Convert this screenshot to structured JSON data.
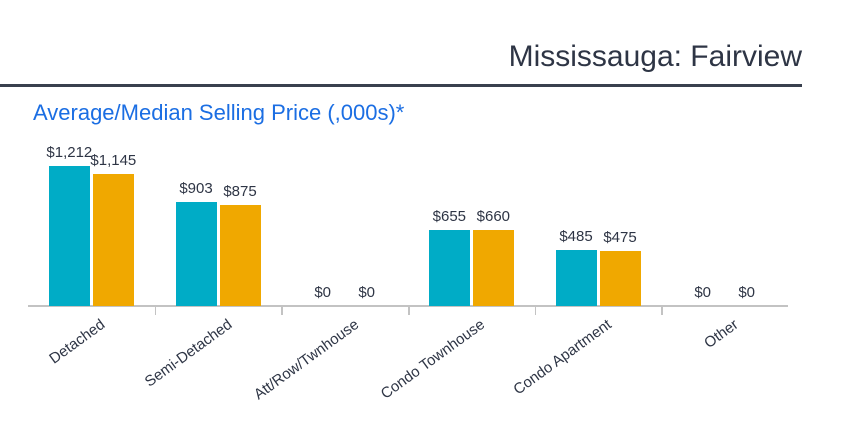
{
  "header": {
    "title": "Mississauga: Fairview"
  },
  "chart": {
    "title": "Average/Median Selling Price (,000s)*"
  },
  "chart_data": {
    "type": "bar",
    "title": "Average/Median Selling Price (,000s)*",
    "categories": [
      "Detached",
      "Semi-Detached",
      "Att/Row/Twnhouse",
      "Condo Townhouse",
      "Condo Apartment",
      "Other"
    ],
    "series": [
      {
        "name": "Average",
        "color": "#00ACC6",
        "values": [
          1212,
          903,
          0,
          655,
          485,
          0
        ],
        "labels": [
          "$1,212",
          "$903",
          "$0",
          "$655",
          "$485",
          "$0"
        ]
      },
      {
        "name": "Median",
        "color": "#F0A800",
        "values": [
          1145,
          875,
          0,
          660,
          475,
          0
        ],
        "labels": [
          "$1,145",
          "$875",
          "$0",
          "$660",
          "$475",
          "$0"
        ]
      }
    ],
    "xlabel": "",
    "ylabel": "",
    "ylim": [
      0,
      1300
    ],
    "grid": false,
    "legend_position": "none",
    "value_prefix": "$"
  },
  "colors": {
    "series_average": "#00ACC6",
    "series_median": "#F0A800",
    "title_blue": "#1B6EE3",
    "text_dark": "#2E3545",
    "axis_gray": "#C3C3C3",
    "header_dark": "#2E3545"
  }
}
